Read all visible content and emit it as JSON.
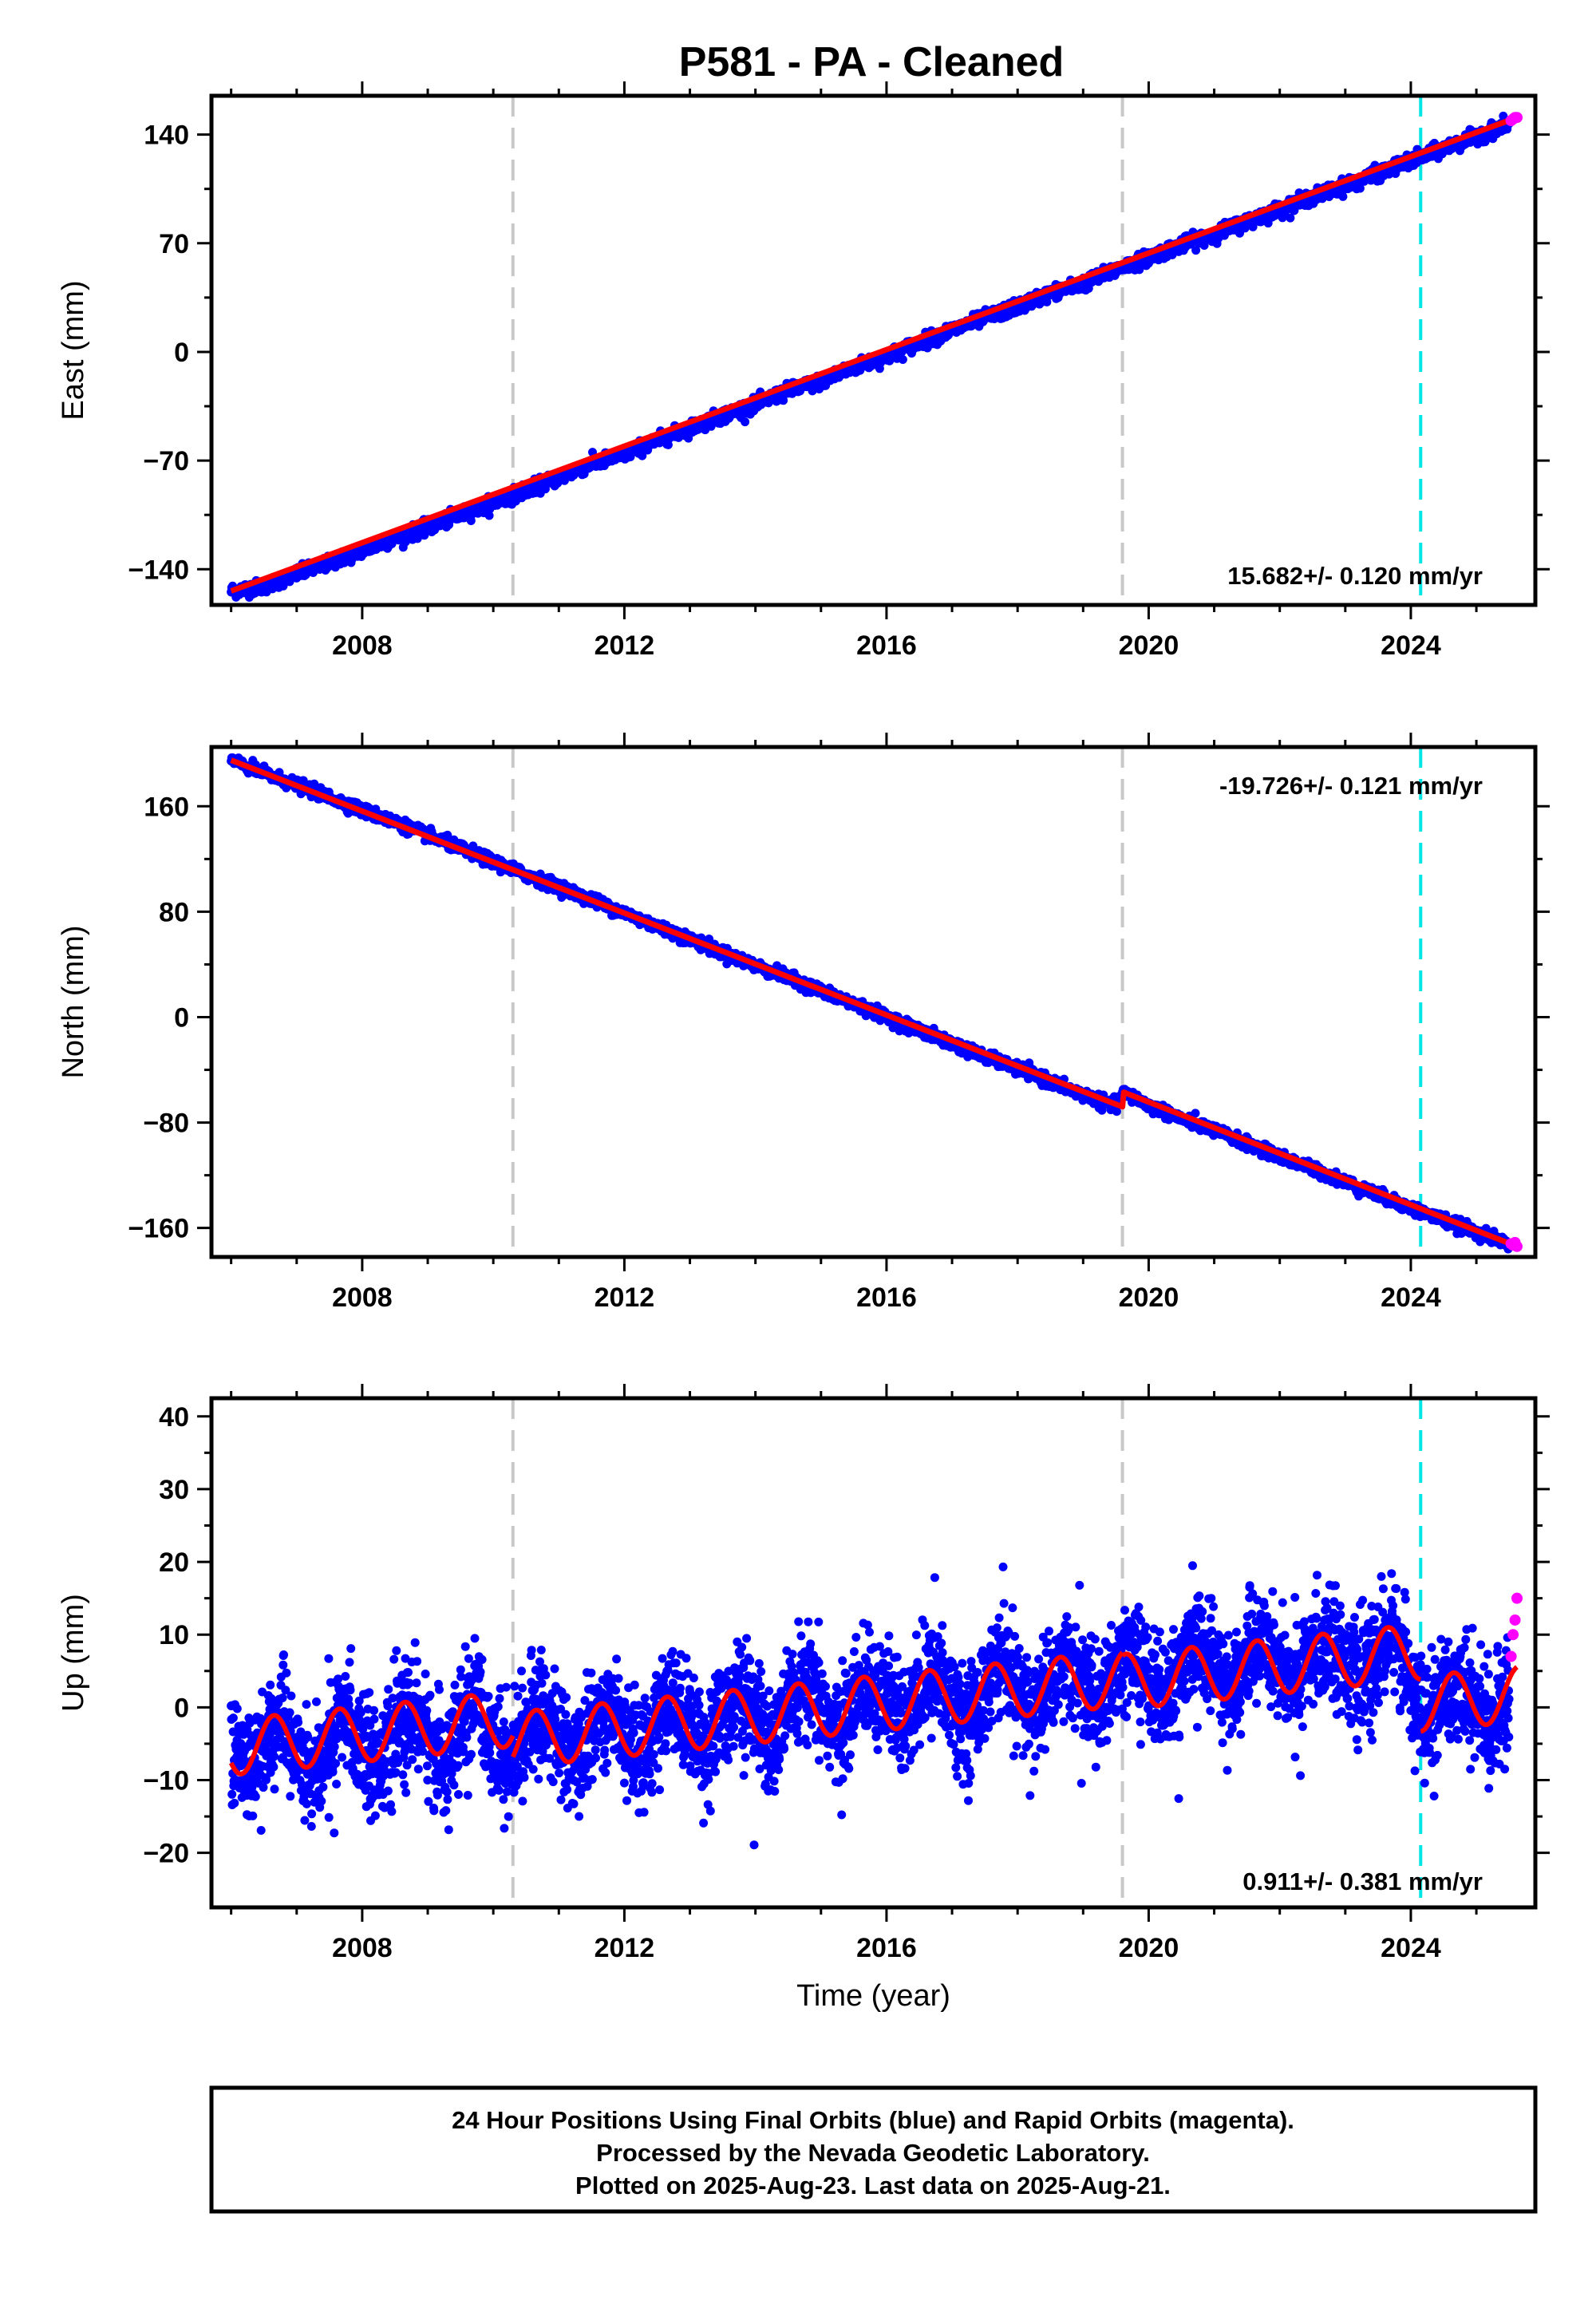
{
  "title": "P581  - PA - Cleaned",
  "colors": {
    "final_points": "#0000ff",
    "rapid_points": "#ff00ff",
    "model": "#ff0000",
    "equipment_change": "#c8c8c8",
    "earthquake_marker": "#00e5e5"
  },
  "footer": {
    "line1": "24 Hour Positions Using Final Orbits (blue) and Rapid Orbits (magenta).",
    "line2": "Processed by the Nevada Geodetic Laboratory.",
    "line3": "Plotted on 2025-Aug-23. Last data on 2025-Aug-21."
  },
  "chart_data": [
    {
      "type": "scatter",
      "component": "east",
      "ylabel": "East (mm)",
      "rate_label": "15.682+/- 0.120 mm/yr",
      "xlim": [
        2005.7,
        2025.9
      ],
      "ylim": [
        -163,
        165
      ],
      "xticks": [
        2008,
        2012,
        2016,
        2020,
        2024
      ],
      "xtick_labels": [
        "2008",
        "2012",
        "2016",
        "2020",
        "2024"
      ],
      "yticks": [
        -140,
        -70,
        0,
        70,
        140
      ],
      "ytick_labels": [
        "−140",
        "−70",
        "0",
        "70",
        "140"
      ],
      "gray_vlines": [
        2010.3,
        2019.6
      ],
      "cyan_vlines": [
        2024.15
      ],
      "final_series": {
        "name": "Final Orbits",
        "x": [
          2006.0,
          2006.5,
          2007.0,
          2007.5,
          2008.0,
          2008.5,
          2009.0,
          2009.5,
          2010.0,
          2010.5,
          2011.0,
          2011.5,
          2012.0,
          2012.5,
          2013.0,
          2013.5,
          2014.0,
          2014.5,
          2015.0,
          2015.5,
          2016.0,
          2016.5,
          2017.0,
          2017.5,
          2018.0,
          2018.5,
          2019.0,
          2019.5,
          2020.0,
          2020.5,
          2021.0,
          2021.5,
          2022.0,
          2022.5,
          2023.0,
          2023.5,
          2024.0,
          2024.5,
          2025.0,
          2025.5
        ],
        "y": [
          -154,
          -151,
          -143,
          -136,
          -128,
          -120,
          -113,
          -105,
          -97,
          -89,
          -81,
          -72,
          -66,
          -57,
          -49,
          -41,
          -34,
          -25,
          -19,
          -10,
          -3,
          6,
          14,
          22,
          29,
          38,
          44,
          53,
          61,
          69,
          76,
          84,
          92,
          100,
          107,
          115,
          123,
          131,
          139,
          147
        ]
      },
      "rapid_series": {
        "name": "Rapid Orbits",
        "x": [
          2025.53,
          2025.56,
          2025.59,
          2025.62
        ],
        "y": [
          149,
          150,
          151,
          151
        ]
      },
      "model_series": {
        "name": "Model",
        "x": [
          2006.0,
          2025.62
        ],
        "y": [
          -154,
          151
        ]
      }
    },
    {
      "type": "scatter",
      "component": "north",
      "ylabel": "North (mm)",
      "rate_label": "-19.726+/- 0.121 mm/yr",
      "xlim": [
        2005.7,
        2025.9
      ],
      "ylim": [
        -182,
        205
      ],
      "xticks": [
        2008,
        2012,
        2016,
        2020,
        2024
      ],
      "xtick_labels": [
        "2008",
        "2012",
        "2016",
        "2020",
        "2024"
      ],
      "yticks": [
        -160,
        -80,
        0,
        80,
        160
      ],
      "ytick_labels": [
        "−160",
        "−80",
        "0",
        "80",
        "160"
      ],
      "gray_vlines": [
        2010.3,
        2019.6
      ],
      "cyan_vlines": [
        2024.15
      ],
      "final_series": {
        "name": "Final Orbits",
        "x": [
          2006.0,
          2006.5,
          2007.0,
          2007.5,
          2008.0,
          2008.5,
          2009.0,
          2009.5,
          2010.0,
          2010.5,
          2011.0,
          2011.5,
          2012.0,
          2012.5,
          2013.0,
          2013.5,
          2014.0,
          2014.5,
          2015.0,
          2015.5,
          2016.0,
          2016.5,
          2017.0,
          2017.5,
          2018.0,
          2018.5,
          2019.0,
          2019.5,
          2019.62,
          2020.0,
          2020.5,
          2021.0,
          2021.5,
          2022.0,
          2022.5,
          2023.0,
          2023.5,
          2024.0,
          2024.5,
          2025.0,
          2025.5
        ],
        "y": [
          195,
          185,
          176,
          167,
          157,
          148,
          138,
          128,
          118,
          108,
          99,
          89,
          79,
          69,
          59,
          49,
          39,
          30,
          20,
          10,
          0,
          -10,
          -20,
          -30,
          -39,
          -49,
          -59,
          -68,
          -57,
          -67,
          -77,
          -86,
          -96,
          -106,
          -115,
          -125,
          -135,
          -145,
          -154,
          -163,
          -172
        ]
      },
      "rapid_series": {
        "name": "Rapid Orbits",
        "x": [
          2025.53,
          2025.56,
          2025.59,
          2025.62
        ],
        "y": [
          -172,
          -173,
          -171,
          -174
        ]
      },
      "model_series": {
        "name": "Model",
        "x": [
          2006.0,
          2019.6,
          2019.62,
          2025.62
        ],
        "y": [
          195,
          -68,
          -57,
          -174
        ]
      }
    },
    {
      "type": "scatter",
      "component": "up",
      "ylabel": "Up (mm)",
      "xlabel": "Time (year)",
      "rate_label": "0.911+/- 0.381 mm/yr",
      "xlim": [
        2005.7,
        2025.9
      ],
      "ylim": [
        -27.5,
        42.5
      ],
      "xticks": [
        2008,
        2012,
        2016,
        2020,
        2024
      ],
      "xtick_labels": [
        "2008",
        "2012",
        "2016",
        "2020",
        "2024"
      ],
      "yticks": [
        -20,
        -10,
        0,
        10,
        20,
        30,
        40
      ],
      "ytick_labels": [
        "−20",
        "−10",
        "0",
        "10",
        "20",
        "30",
        "40"
      ],
      "gray_vlines": [
        2010.3,
        2019.6
      ],
      "cyan_vlines": [
        2024.15
      ],
      "final_series": {
        "name": "Final Orbits",
        "x": [
          2006.0,
          2006.25,
          2006.5,
          2006.75,
          2007.0,
          2007.25,
          2007.5,
          2007.75,
          2008.0,
          2008.25,
          2008.5,
          2008.75,
          2009.0,
          2009.25,
          2009.5,
          2009.75,
          2010.0,
          2010.25,
          2010.5,
          2010.75,
          2011.0,
          2011.25,
          2011.5,
          2011.75,
          2012.0,
          2012.25,
          2012.5,
          2012.75,
          2013.0,
          2013.25,
          2013.5,
          2013.75,
          2014.0,
          2014.25,
          2014.5,
          2014.75,
          2015.0,
          2015.25,
          2015.5,
          2015.75,
          2016.0,
          2016.25,
          2016.5,
          2016.75,
          2017.0,
          2017.25,
          2017.5,
          2017.75,
          2018.0,
          2018.25,
          2018.5,
          2018.75,
          2019.0,
          2019.25,
          2019.5,
          2019.75,
          2020.0,
          2020.25,
          2020.5,
          2020.75,
          2021.0,
          2021.25,
          2021.5,
          2021.75,
          2022.0,
          2022.25,
          2022.5,
          2022.75,
          2023.0,
          2023.25,
          2023.5,
          2023.75,
          2024.0,
          2024.25,
          2024.5,
          2024.75,
          2025.0,
          2025.25,
          2025.5
        ],
        "y": [
          -5,
          -9,
          -5,
          -2,
          -6,
          -9,
          -5,
          -1,
          -5,
          -8,
          -4,
          -0.5,
          -4,
          -8,
          -3,
          1,
          -4,
          -8,
          -3,
          0,
          -4,
          -8,
          -3,
          0.5,
          -3,
          -7,
          -2,
          1,
          -2,
          -6,
          -1,
          2,
          -1,
          -5,
          -0.5,
          3,
          0,
          -4,
          0.5,
          4,
          1,
          -3,
          1.5,
          5,
          1,
          -2,
          2.5,
          6,
          2,
          -1,
          3.5,
          7,
          3,
          0,
          4,
          8,
          4,
          1,
          5,
          9,
          5,
          2,
          6,
          10,
          6,
          3,
          7,
          10,
          6,
          3,
          7,
          11,
          3,
          -3,
          1,
          4,
          0,
          -3,
          2
        ]
      },
      "rapid_series": {
        "name": "Rapid Orbits",
        "x": [
          2025.53,
          2025.56,
          2025.59,
          2025.62
        ],
        "y": [
          7,
          10,
          12,
          15
        ]
      },
      "model_series": {
        "name": "Model",
        "annual_amplitude_mm": 4,
        "segments": [
          {
            "x_start": 2006.0,
            "x_end": 2010.3,
            "offset_at_start": -5.5
          },
          {
            "x_start": 2010.3,
            "x_end": 2019.6,
            "offset_at_start": -4.5
          },
          {
            "x_start": 2019.6,
            "x_end": 2024.15,
            "offset_at_start": 3.5
          },
          {
            "x_start": 2024.15,
            "x_end": 2025.62,
            "offset_at_start": 0.5
          }
        ]
      }
    }
  ]
}
